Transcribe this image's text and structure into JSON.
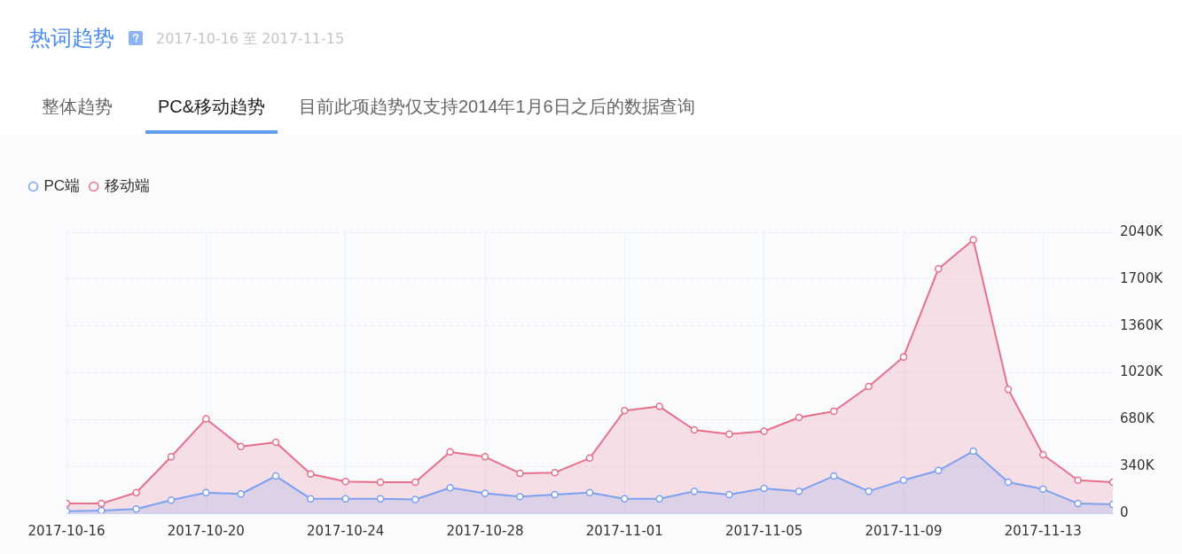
{
  "chart_data": {
    "type": "area",
    "title": "热词趋势",
    "subtitle": "2017-10-16 至 2017-11-15",
    "annotations": [
      "整体趋势",
      "PC&移动趋势",
      "目前此项趋势仅支持2014年1月6日之后的数据查询"
    ],
    "x": [
      "2017-10-16",
      "2017-10-17",
      "2017-10-18",
      "2017-10-19",
      "2017-10-20",
      "2017-10-21",
      "2017-10-22",
      "2017-10-23",
      "2017-10-24",
      "2017-10-25",
      "2017-10-26",
      "2017-10-27",
      "2017-10-28",
      "2017-10-29",
      "2017-10-30",
      "2017-10-31",
      "2017-11-01",
      "2017-11-02",
      "2017-11-03",
      "2017-11-04",
      "2017-11-05",
      "2017-11-06",
      "2017-11-07",
      "2017-11-08",
      "2017-11-09",
      "2017-11-10",
      "2017-11-11",
      "2017-11-12",
      "2017-11-13",
      "2017-11-14",
      "2017-11-15"
    ],
    "series": [
      {
        "name": "PC端",
        "color": "#7ba1f0",
        "values": [
          15,
          20,
          30,
          95,
          150,
          140,
          270,
          105,
          105,
          105,
          100,
          185,
          145,
          120,
          135,
          150,
          105,
          105,
          160,
          135,
          180,
          160,
          270,
          160,
          240,
          310,
          450,
          225,
          175,
          70,
          65
        ]
      },
      {
        "name": "移动端",
        "color": "#e6708b",
        "values": [
          70,
          70,
          150,
          410,
          685,
          485,
          515,
          285,
          230,
          225,
          225,
          445,
          410,
          290,
          295,
          400,
          745,
          775,
          605,
          575,
          595,
          695,
          740,
          920,
          1135,
          1775,
          1985,
          900,
          425,
          240,
          225
        ]
      }
    ],
    "xlim": [
      "2017-10-16",
      "2017-11-15"
    ],
    "xticks": [
      "2017-10-16",
      "2017-10-20",
      "2017-10-24",
      "2017-10-28",
      "2017-11-01",
      "2017-11-05",
      "2017-11-09",
      "2017-11-13"
    ],
    "ylim": [
      0,
      2040
    ],
    "yticks": [
      0,
      {
        "value": 340,
        "label": "340K"
      },
      {
        "value": 680,
        "label": "680K"
      },
      {
        "value": 1020,
        "label": "1020K"
      },
      {
        "value": 1360,
        "label": "1360K"
      },
      {
        "value": 1700,
        "label": "1700K"
      },
      {
        "value": 2040,
        "label": "2040K"
      }
    ],
    "grid": true,
    "legend": "top left",
    "marker": "circle",
    "line_style": "solid"
  }
}
